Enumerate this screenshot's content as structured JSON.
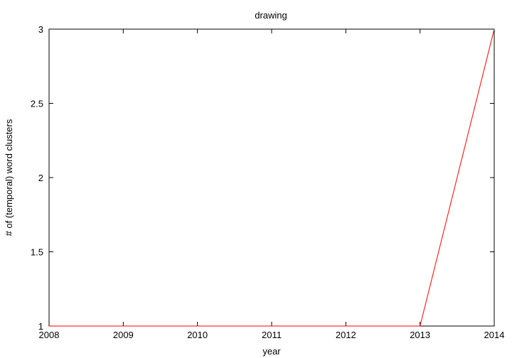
{
  "chart_data": {
    "type": "line",
    "title": "drawing",
    "xlabel": "year",
    "ylabel": "# of (temporal) word clusters",
    "xlim": [
      2008,
      2014
    ],
    "ylim": [
      1,
      3
    ],
    "xticks": [
      "2008",
      "2009",
      "2010",
      "2011",
      "2012",
      "2013",
      "2014"
    ],
    "yticks": [
      "1",
      "1.5",
      "2",
      "2.5",
      "3"
    ],
    "grid": false,
    "legend": "none",
    "series": [
      {
        "color": "#ff0000",
        "x": [
          2008,
          2009,
          2010,
          2011,
          2012,
          2013,
          2014
        ],
        "y": [
          1,
          1,
          1,
          1,
          1,
          1,
          3
        ]
      }
    ]
  }
}
